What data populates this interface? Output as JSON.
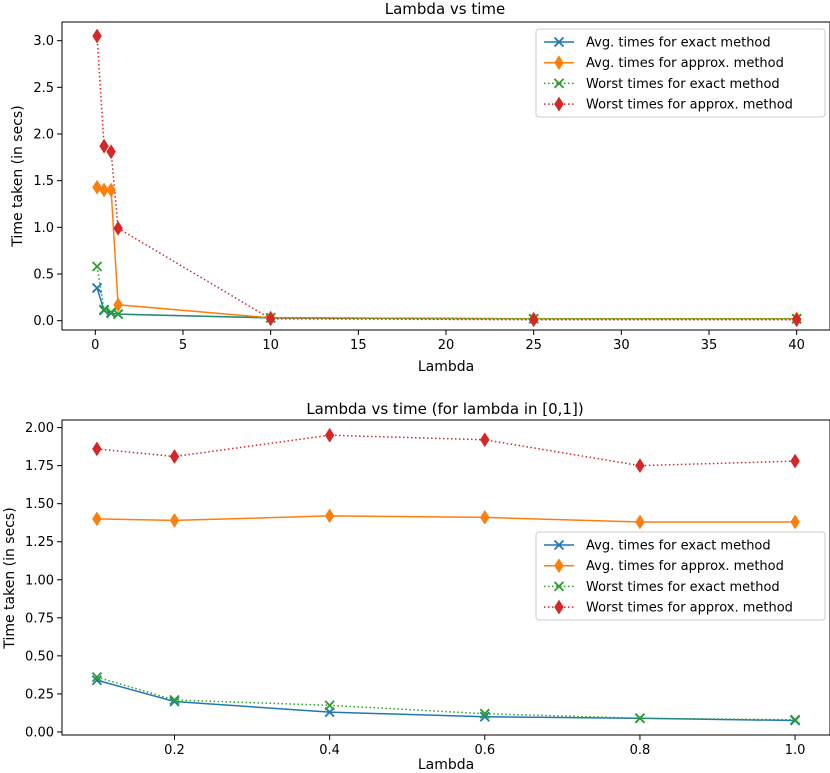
{
  "colors": {
    "exact_avg": "#1f77b4",
    "approx_avg": "#ff7f0e",
    "exact_worst": "#2ca02c",
    "approx_worst": "#d62728"
  },
  "chart_data": [
    {
      "type": "line",
      "title": "Lambda vs time",
      "xlabel": "Lambda",
      "ylabel": "Time taken (in secs)",
      "xlim": [
        -1.9,
        41.9
      ],
      "ylim": [
        -0.1,
        3.2
      ],
      "xticks": [
        0,
        5,
        10,
        15,
        20,
        25,
        30,
        35,
        40
      ],
      "xtick_labels": [
        "0",
        "5",
        "10",
        "15",
        "20",
        "25",
        "30",
        "35",
        "40"
      ],
      "yticks": [
        0.0,
        0.5,
        1.0,
        1.5,
        2.0,
        2.5,
        3.0
      ],
      "ytick_labels": [
        "0.0",
        "0.5",
        "1.0",
        "1.5",
        "2.0",
        "2.5",
        "3.0"
      ],
      "legend_position": "top-right",
      "x": [
        0.1,
        0.5,
        0.9,
        1.3,
        10,
        25,
        40
      ],
      "series": [
        {
          "name": "Avg. times for exact method",
          "marker": "x",
          "style": "solid",
          "color_key": "exact_avg",
          "values": [
            0.35,
            0.11,
            0.08,
            0.07,
            0.03,
            0.02,
            0.02
          ]
        },
        {
          "name": "Avg. times for approx. method",
          "marker": "diamond",
          "style": "solid",
          "color_key": "approx_avg",
          "values": [
            1.43,
            1.4,
            1.4,
            0.17,
            0.03,
            0.02,
            0.02
          ]
        },
        {
          "name": "Worst times for exact method",
          "marker": "x",
          "style": "dotted",
          "color_key": "exact_worst",
          "values": [
            0.58,
            0.12,
            0.09,
            0.07,
            0.03,
            0.02,
            0.02
          ]
        },
        {
          "name": "Worst times for approx. method",
          "marker": "diamond",
          "style": "dotted",
          "color_key": "approx_worst",
          "values": [
            3.05,
            1.87,
            1.81,
            0.99,
            0.02,
            0.01,
            0.01
          ]
        }
      ]
    },
    {
      "type": "line",
      "title": "Lambda vs time (for lambda in [0,1])",
      "xlabel": "Lambda",
      "ylabel": "Time taken (in secs)",
      "xlim": [
        0.055,
        1.045
      ],
      "ylim": [
        -0.02,
        2.05
      ],
      "xticks": [
        0.2,
        0.4,
        0.6,
        0.8,
        1.0
      ],
      "xtick_labels": [
        "0.2",
        "0.4",
        "0.6",
        "0.8",
        "1.0"
      ],
      "yticks": [
        0.0,
        0.25,
        0.5,
        0.75,
        1.0,
        1.25,
        1.5,
        1.75,
        2.0
      ],
      "ytick_labels": [
        "0.00",
        "0.25",
        "0.50",
        "0.75",
        "1.00",
        "1.25",
        "1.50",
        "1.75",
        "2.00"
      ],
      "legend_position": "center-right",
      "x": [
        0.1,
        0.2,
        0.4,
        0.6,
        0.8,
        1.0
      ],
      "series": [
        {
          "name": "Avg. times for exact method",
          "marker": "x",
          "style": "solid",
          "color_key": "exact_avg",
          "values": [
            0.34,
            0.2,
            0.13,
            0.1,
            0.09,
            0.075
          ]
        },
        {
          "name": "Avg. times for approx. method",
          "marker": "diamond",
          "style": "solid",
          "color_key": "approx_avg",
          "values": [
            1.4,
            1.39,
            1.42,
            1.41,
            1.38,
            1.38
          ]
        },
        {
          "name": "Worst times for exact method",
          "marker": "x",
          "style": "dotted",
          "color_key": "exact_worst",
          "values": [
            0.36,
            0.21,
            0.175,
            0.12,
            0.09,
            0.08
          ]
        },
        {
          "name": "Worst times for approx. method",
          "marker": "diamond",
          "style": "dotted",
          "color_key": "approx_worst",
          "values": [
            1.86,
            1.81,
            1.95,
            1.92,
            1.75,
            1.78
          ]
        }
      ]
    }
  ]
}
